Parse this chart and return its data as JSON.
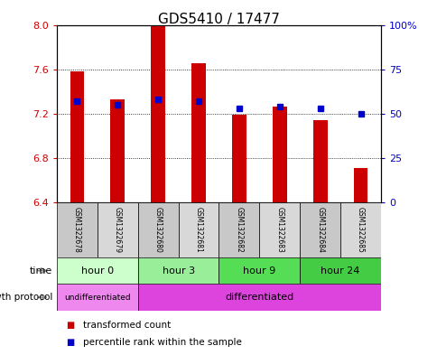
{
  "title": "GDS5410 / 17477",
  "samples": [
    "GSM1322678",
    "GSM1322679",
    "GSM1322680",
    "GSM1322681",
    "GSM1322682",
    "GSM1322683",
    "GSM1322684",
    "GSM1322685"
  ],
  "transformed_count": [
    7.58,
    7.33,
    8.0,
    7.65,
    7.19,
    7.26,
    7.14,
    6.71
  ],
  "baseline": 6.4,
  "percentile_rank": [
    57,
    55,
    58,
    57,
    53,
    54,
    53,
    50
  ],
  "ylim": [
    6.4,
    8.0
  ],
  "ylim_right": [
    0,
    100
  ],
  "yticks_left": [
    6.4,
    6.8,
    7.2,
    7.6,
    8.0
  ],
  "yticks_right": [
    0,
    25,
    50,
    75,
    100
  ],
  "ytick_labels_right": [
    "0",
    "25",
    "50",
    "75",
    "100%"
  ],
  "bar_color": "#cc0000",
  "dot_color": "#0000cc",
  "time_groups": [
    {
      "label": "hour 0",
      "start": 0,
      "end": 2,
      "color": "#ccffcc"
    },
    {
      "label": "hour 3",
      "start": 2,
      "end": 4,
      "color": "#99ee99"
    },
    {
      "label": "hour 9",
      "start": 4,
      "end": 6,
      "color": "#55dd55"
    },
    {
      "label": "hour 24",
      "start": 6,
      "end": 8,
      "color": "#44cc44"
    }
  ],
  "growth_protocol_groups": [
    {
      "label": "undifferentiated",
      "start": 0,
      "end": 2,
      "color": "#ee88ee"
    },
    {
      "label": "differentiated",
      "start": 2,
      "end": 8,
      "color": "#dd44dd"
    }
  ],
  "legend_items": [
    {
      "label": "transformed count",
      "color": "#cc0000"
    },
    {
      "label": "percentile rank within the sample",
      "color": "#0000cc"
    }
  ],
  "bg_color": "#ffffff",
  "plot_bg_color": "#ffffff",
  "border_color": "#000000",
  "label_time": "time",
  "label_growth": "growth protocol",
  "sample_col_color_even": "#c8c8c8",
  "sample_col_color_odd": "#d8d8d8",
  "title_fontsize": 11,
  "bar_width": 0.35
}
